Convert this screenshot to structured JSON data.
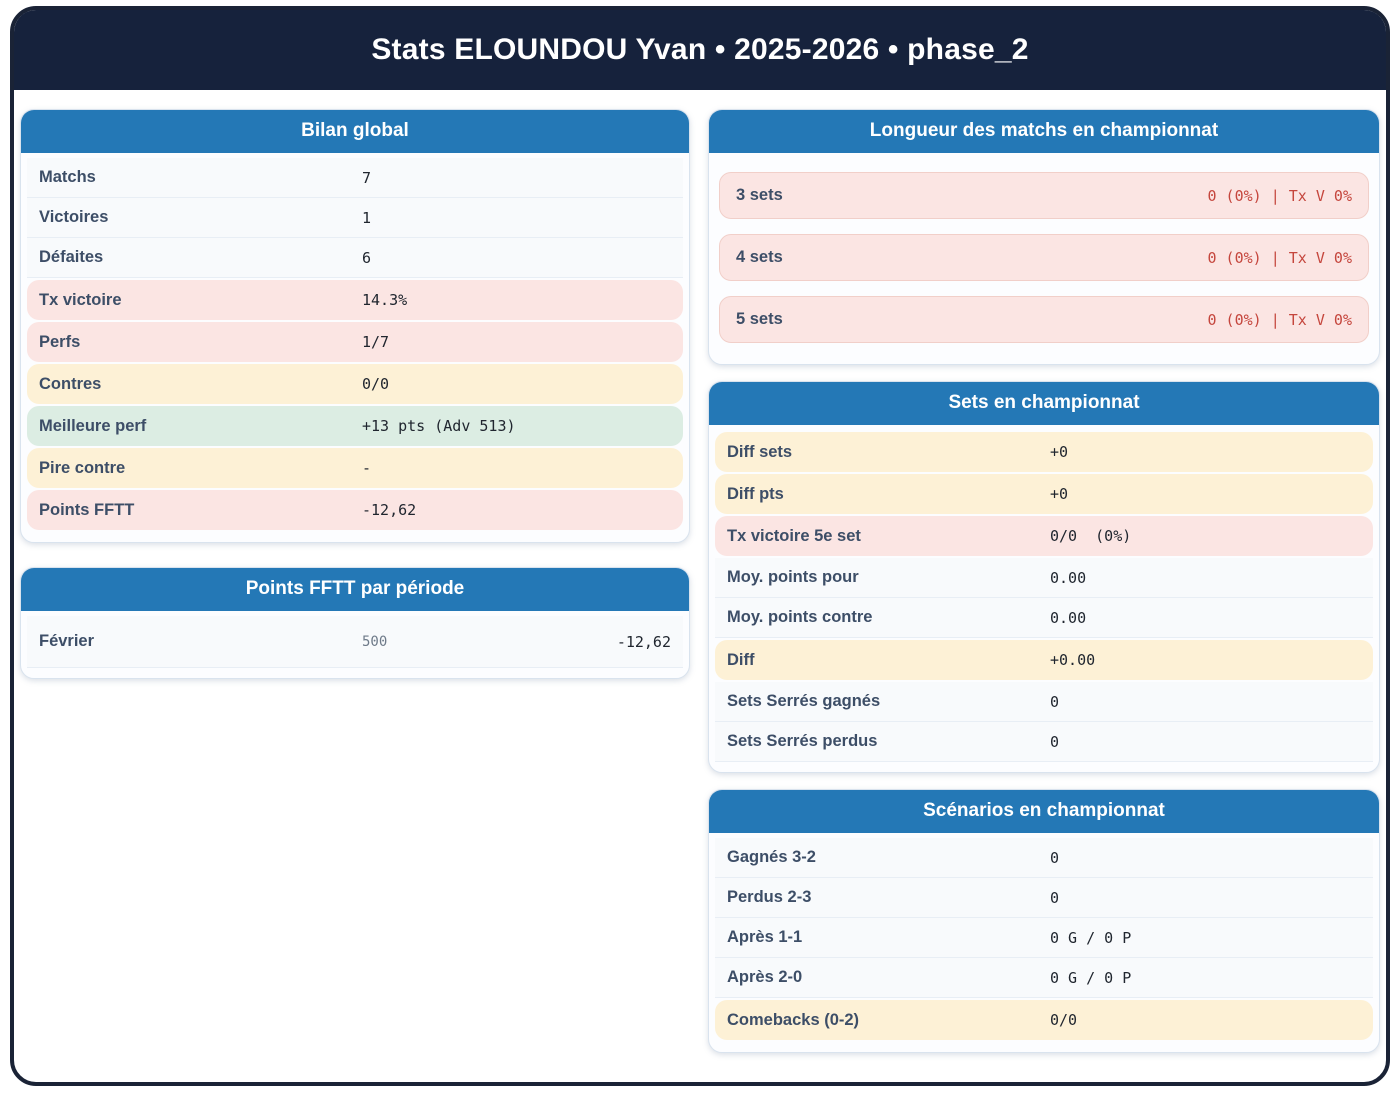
{
  "header": {
    "title": "Stats ELOUNDOU Yvan • 2025-2026 • phase_2"
  },
  "colors": {
    "navy": "#16223c",
    "card_header_blue": "#2478b6",
    "pill_pink": "#fbe5e3",
    "pill_yellow": "#fdf1d6",
    "pill_green": "#dcede3",
    "red_text": "#c5463d",
    "label_slate": "#3d4e67"
  },
  "cards": {
    "bilan": {
      "title": "Bilan global",
      "rows": [
        {
          "label": "Matchs",
          "value": "7",
          "variant": "plain"
        },
        {
          "label": "Victoires",
          "value": "1",
          "variant": "plain"
        },
        {
          "label": "Défaites",
          "value": "6",
          "variant": "plain"
        },
        {
          "label": "Tx victoire",
          "value": "14.3%",
          "variant": "pink"
        },
        {
          "label": "Perfs",
          "value": "1/7",
          "variant": "pink"
        },
        {
          "label": "Contres",
          "value": "0/0",
          "variant": "yellow"
        },
        {
          "label": "Meilleure perf",
          "value": "+13 pts (Adv 513)",
          "variant": "green"
        },
        {
          "label": "Pire contre",
          "value": "-",
          "variant": "yellow"
        },
        {
          "label": "Points FFTT",
          "value": "-12,62",
          "variant": "pink"
        }
      ]
    },
    "periode": {
      "title": "Points FFTT par période",
      "rows": [
        {
          "label": "Février",
          "mid": "500",
          "value": "-12,62"
        }
      ]
    },
    "longueur": {
      "title": "Longueur des matchs en championnat",
      "rows": [
        {
          "label": "3 sets",
          "value": "0 (0%) | Tx V 0%"
        },
        {
          "label": "4 sets",
          "value": "0 (0%) | Tx V 0%"
        },
        {
          "label": "5 sets",
          "value": "0 (0%) | Tx V 0%"
        }
      ]
    },
    "sets": {
      "title": "Sets en championnat",
      "rows": [
        {
          "label": "Diff sets",
          "value": "+0",
          "variant": "yellow"
        },
        {
          "label": "Diff pts",
          "value": "+0",
          "variant": "yellow"
        },
        {
          "label": "Tx victoire 5e set",
          "value": "0/0  (0%)",
          "variant": "pink"
        },
        {
          "label": "Moy. points pour",
          "value": "0.00",
          "variant": "plain"
        },
        {
          "label": "Moy. points contre",
          "value": "0.00",
          "variant": "plain"
        },
        {
          "label": "Diff",
          "value": "+0.00",
          "variant": "yellow"
        },
        {
          "label": "Sets Serrés gagnés",
          "value": "0",
          "variant": "plain"
        },
        {
          "label": "Sets Serrés perdus",
          "value": "0",
          "variant": "plain"
        }
      ]
    },
    "scenarios": {
      "title": "Scénarios en championnat",
      "rows": [
        {
          "label": "Gagnés 3-2",
          "value": "0",
          "variant": "plain"
        },
        {
          "label": "Perdus 2-3",
          "value": "0",
          "variant": "plain"
        },
        {
          "label": "Après 1-1",
          "value": "0 G / 0 P",
          "variant": "plain"
        },
        {
          "label": "Après 2-0",
          "value": "0 G / 0 P",
          "variant": "plain"
        },
        {
          "label": "Comebacks (0-2)",
          "value": "0/0",
          "variant": "yellow"
        }
      ]
    }
  }
}
